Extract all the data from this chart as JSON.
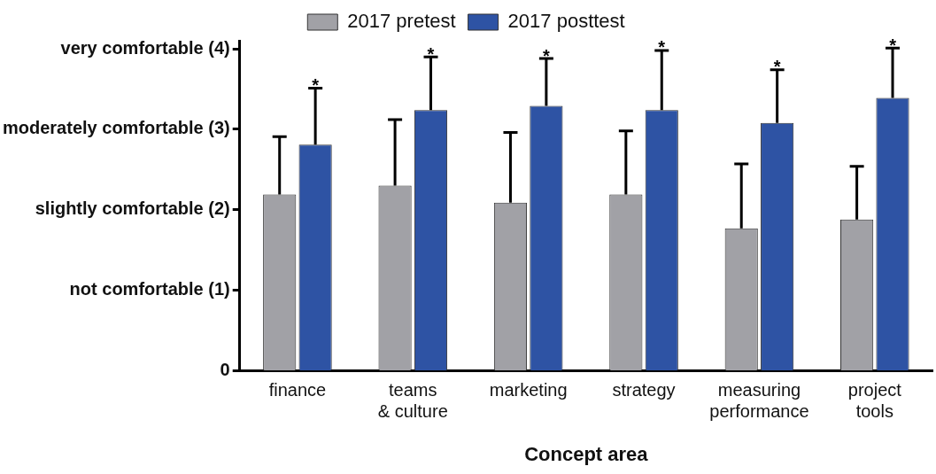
{
  "chart_data": {
    "type": "bar",
    "xlabel": "Concept area",
    "categories": [
      "finance",
      "teams\n& culture",
      "marketing",
      "strategy",
      "measuring\nperformance",
      "project\ntools"
    ],
    "series": [
      {
        "name": "2017 pretest",
        "color": "#a1a1a6",
        "values": [
          2.19,
          2.3,
          2.09,
          2.19,
          1.77,
          1.88
        ],
        "errors": [
          [
            2.19,
            2.91
          ],
          [
            2.3,
            3.12
          ],
          [
            2.09,
            2.96
          ],
          [
            2.19,
            2.98
          ],
          [
            1.77,
            2.57
          ],
          [
            1.88,
            2.54
          ]
        ]
      },
      {
        "name": "2017 posttest",
        "color": "#2e53a4",
        "values": [
          2.81,
          3.24,
          3.29,
          3.24,
          3.08,
          3.39
        ],
        "errors": [
          [
            2.81,
            3.51
          ],
          [
            3.24,
            3.9
          ],
          [
            3.29,
            3.88
          ],
          [
            3.24,
            3.98
          ],
          [
            3.08,
            3.74
          ],
          [
            3.39,
            4.01
          ]
        ]
      }
    ],
    "ylim": [
      0,
      4.1
    ],
    "yticks": [
      0,
      {
        "value": 1,
        "label": "not comfortable (1)"
      },
      {
        "value": 2,
        "label": "slightly comfortable (2)"
      },
      {
        "value": 3,
        "label": "moderately comfortable (3)"
      },
      {
        "value": 4,
        "label": "very comfortable (4)"
      }
    ],
    "grid": false,
    "legend": "top",
    "annotations": [
      "*",
      "*",
      "*",
      "*",
      "*",
      "*"
    ]
  }
}
